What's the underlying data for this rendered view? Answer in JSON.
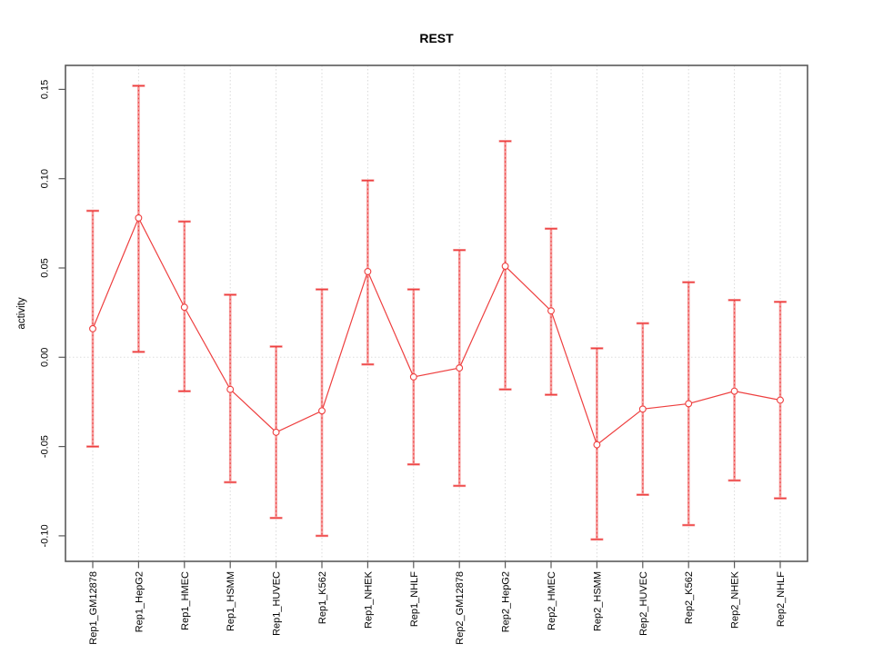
{
  "page": {
    "background_color": "#ffffff"
  },
  "chart_data": {
    "type": "line",
    "title": "REST",
    "xlabel": "",
    "ylabel": "activity",
    "legend_position": "none",
    "grid": {
      "vertical": "dotted line at every category",
      "horizontal": "dotted line at zero only"
    },
    "ylim": [
      -0.114,
      0.163
    ],
    "yticks": [
      0.15,
      0.1,
      0.05,
      0.0,
      -0.05,
      -0.1
    ],
    "ytick_labels": [
      "0.15",
      "0.10",
      "0.05",
      "0.00",
      "-0.05",
      "-0.10"
    ],
    "categories": [
      "Rep1_GM12878",
      "Rep1_HepG2",
      "Rep1_HMEC",
      "Rep1_HSMM",
      "Rep1_HUVEC",
      "Rep1_K562",
      "Rep1_NHEK",
      "Rep1_NHLF",
      "Rep2_GM12878",
      "Rep2_HepG2",
      "Rep2_HMEC",
      "Rep2_HSMM",
      "Rep2_HUVEC",
      "Rep2_K562",
      "Rep2_NHEK",
      "Rep2_NHLF"
    ],
    "series": [
      {
        "name": "activity",
        "marker": "open-circle",
        "values": [
          0.016,
          0.078,
          0.028,
          -0.018,
          -0.042,
          -0.03,
          0.048,
          -0.011,
          -0.006,
          0.051,
          0.026,
          -0.049,
          -0.029,
          -0.026,
          -0.019,
          -0.024
        ],
        "error_high": [
          0.082,
          0.152,
          0.076,
          0.035,
          0.006,
          0.038,
          0.099,
          0.038,
          0.06,
          0.121,
          0.072,
          0.005,
          0.019,
          0.042,
          0.032,
          0.031
        ],
        "error_low": [
          -0.05,
          0.003,
          -0.019,
          -0.07,
          -0.09,
          -0.1,
          -0.004,
          -0.06,
          -0.072,
          -0.018,
          -0.021,
          -0.102,
          -0.077,
          -0.094,
          -0.069,
          -0.079
        ]
      }
    ],
    "colors": {
      "series_line": "#ee3f3f",
      "error_bar_light": "#f59a9a",
      "marker_stroke": "#ee3f3f",
      "marker_fill": "#ffffff",
      "axis_box": "#5a5a5a",
      "gridline": "#d9d9d9",
      "zero_line": "#dedede",
      "text": "#000000"
    }
  }
}
